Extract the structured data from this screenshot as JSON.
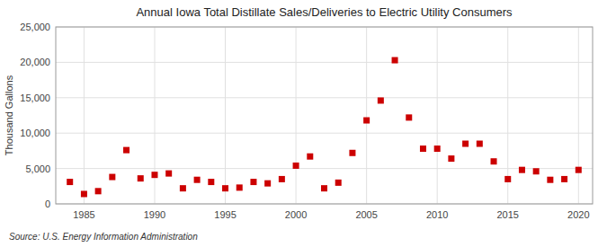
{
  "chart_data": {
    "type": "scatter",
    "title": "Annual Iowa Total Distillate Sales/Deliveries to Electric Utility Consumers",
    "ylabel": "Thousand Gallons",
    "annotations": [
      "Source: U.S. Energy Information Administration"
    ],
    "color": "#cc0000",
    "marker": "square",
    "grid": true,
    "xlim": [
      1983,
      2021
    ],
    "ylim": [
      0,
      25000
    ],
    "xticks": [
      1985,
      1990,
      1995,
      2000,
      2005,
      2010,
      2015,
      2020
    ],
    "yticks": [
      0,
      {
        "value": 5000,
        "label": "5,000"
      },
      {
        "value": 10000,
        "label": "10,000"
      },
      {
        "value": 15000,
        "label": "15,000"
      },
      {
        "value": 20000,
        "label": "20,000"
      },
      {
        "value": 25000,
        "label": "25,000"
      }
    ],
    "x": [
      1984,
      1985,
      1986,
      1987,
      1988,
      1989,
      1990,
      1991,
      1992,
      1993,
      1994,
      1995,
      1996,
      1997,
      1998,
      1999,
      2000,
      2001,
      2002,
      2003,
      2004,
      2005,
      2006,
      2007,
      2008,
      2009,
      2010,
      2011,
      2012,
      2013,
      2014,
      2015,
      2016,
      2017,
      2018,
      2019,
      2020
    ],
    "values": [
      3100,
      1400,
      1800,
      3800,
      7600,
      3600,
      4100,
      4300,
      2200,
      3400,
      3100,
      2200,
      2300,
      3100,
      2900,
      3500,
      5400,
      6700,
      2200,
      3000,
      7200,
      11800,
      14600,
      20300,
      12200,
      7800,
      7800,
      6400,
      8500,
      8500,
      6000,
      3500,
      4800,
      4600,
      3400,
      3500,
      4800
    ]
  }
}
